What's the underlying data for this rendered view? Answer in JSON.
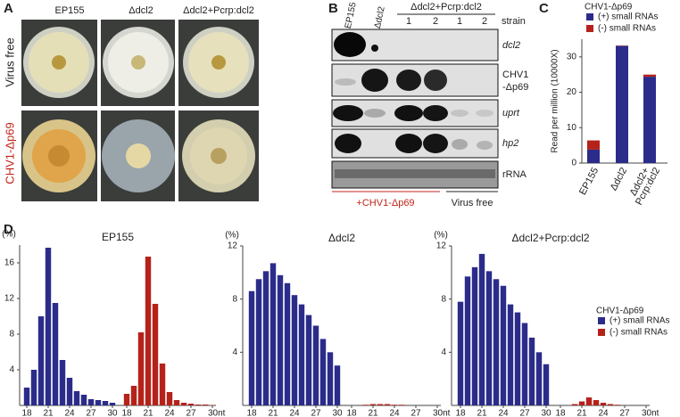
{
  "panel_labels": [
    "A",
    "B",
    "C",
    "D"
  ],
  "panel_a": {
    "columns": [
      "EP155",
      "Δdcl2",
      "Δdcl2+Pcrp:dcl2"
    ],
    "rows": [
      "Virus free",
      "CHV1-Δp69"
    ]
  },
  "panel_b": {
    "lanes": [
      "EP155",
      "Δdcl2"
    ],
    "group_label": "Δdcl2+Pcrp:dcl2",
    "sublanes": [
      "1",
      "2",
      "1",
      "2"
    ],
    "strain_label": "strain",
    "probes": [
      [
        "dcl2"
      ],
      [
        "CHV1",
        "-Δp69"
      ],
      [
        "uprt"
      ],
      [
        "hp2"
      ],
      [
        "rRNA"
      ]
    ],
    "bottom_labels": [
      "+CHV1-Δp69",
      "Virus free"
    ]
  },
  "chart_data": [
    {
      "type": "bar",
      "stacked": true,
      "categories": [
        "EP155",
        "Δdcl2",
        [
          "Δdcl2+",
          "Pcrp:dcl2"
        ]
      ],
      "y_label": "Read per million (10000X)",
      "legend_title": "CHV1-Δp69",
      "series": [
        {
          "name": "(+) small RNAs",
          "color": "#2b2c8a",
          "values": [
            3.8,
            33.1,
            24.4
          ]
        },
        {
          "name": "(-) small RNAs",
          "color": "#b5221a",
          "values": [
            2.6,
            0.1,
            0.6
          ]
        }
      ],
      "ylim": [
        0,
        35
      ],
      "yticks": [
        0,
        10,
        20,
        30
      ]
    },
    {
      "type": "bar",
      "stacked": false,
      "title": "EP155",
      "y_label": "(%)",
      "x": [
        18,
        19,
        20,
        21,
        22,
        23,
        24,
        25,
        26,
        27,
        28,
        29,
        30
      ],
      "series": [
        {
          "color": "#2b2c8a",
          "values": [
            2,
            4,
            10,
            17.7,
            11.5,
            5.1,
            3.1,
            1.6,
            1.2,
            0.7,
            0.6,
            0.5,
            0.3
          ]
        },
        {
          "color": "#b5221a",
          "values": [
            1.3,
            2.2,
            8.2,
            16.7,
            11.4,
            4.7,
            1.5,
            0.6,
            0.3,
            0.2,
            0.1,
            0.1,
            0.05
          ]
        }
      ],
      "ylim": [
        0,
        18
      ],
      "yticks": [
        4,
        8,
        12,
        16
      ],
      "xticks": [
        18,
        21,
        24,
        27,
        30,
        18,
        21,
        24,
        27,
        {
          "value": 30,
          "label": "30nt"
        }
      ]
    },
    {
      "type": "bar",
      "stacked": false,
      "title": "Δdcl2",
      "y_label": "(%)",
      "x": [
        18,
        19,
        20,
        21,
        22,
        23,
        24,
        25,
        26,
        27,
        28,
        29,
        30
      ],
      "series": [
        {
          "color": "#2b2c8a",
          "values": [
            8.6,
            9.5,
            10.1,
            10.7,
            9.8,
            9.2,
            8.3,
            7.6,
            6.8,
            6.0,
            5.0,
            4.0,
            3.0
          ]
        },
        {
          "color": "#b5221a",
          "values": [
            0,
            0,
            0.05,
            0.1,
            0.1,
            0.1,
            0.05,
            0.05,
            0,
            0,
            0,
            0,
            0
          ]
        }
      ],
      "ylim": [
        0,
        12
      ],
      "yticks": [
        4,
        8,
        12
      ],
      "xticks": [
        18,
        21,
        24,
        27,
        30,
        18,
        21,
        24,
        27,
        {
          "value": 30,
          "label": "30nt"
        }
      ]
    },
    {
      "type": "bar",
      "stacked": false,
      "title": "Δdcl2+Pcrp:dcl2",
      "y_label": "(%)",
      "legend_title": "CHV1-Δp69",
      "x": [
        18,
        19,
        20,
        21,
        22,
        23,
        24,
        25,
        26,
        27,
        28,
        29,
        30
      ],
      "series": [
        {
          "name": "(+) small RNAs",
          "color": "#2b2c8a",
          "values": [
            7.8,
            9.7,
            10.4,
            11.4,
            10.1,
            9.5,
            9.0,
            7.6,
            7.0,
            6.2,
            5.1,
            4.0,
            3.1
          ]
        },
        {
          "name": "(-) small RNAs",
          "color": "#b5221a",
          "values": [
            0,
            0,
            0.1,
            0.3,
            0.6,
            0.4,
            0.2,
            0.1,
            0.05,
            0,
            0,
            0,
            0
          ]
        }
      ],
      "ylim": [
        0,
        12
      ],
      "yticks": [
        4,
        8,
        12
      ],
      "xticks": [
        18,
        21,
        24,
        27,
        30,
        18,
        21,
        24,
        27,
        {
          "value": 30,
          "label": "30nt"
        }
      ]
    }
  ]
}
